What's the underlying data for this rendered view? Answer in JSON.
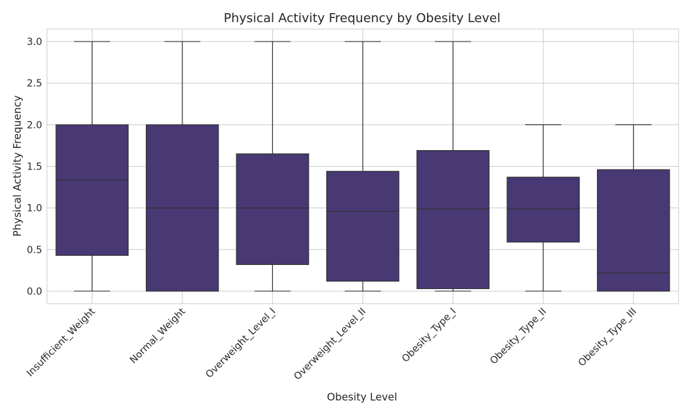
{
  "chart_data": {
    "type": "box",
    "title": "Physical Activity Frequency by Obesity Level",
    "xlabel": "Obesity Level",
    "ylabel": "Physical Activity Frequency",
    "ylim": [
      -0.15,
      3.15
    ],
    "yticks": [
      "0.0",
      "0.5",
      "1.0",
      "1.5",
      "2.0",
      "2.5",
      "3.0"
    ],
    "grid": true,
    "box_color": "#483874",
    "line_color": "#333333",
    "categories": [
      "Insufficient_Weight",
      "Normal_Weight",
      "Overweight_Level_I",
      "Overweight_Level_II",
      "Obesity_Type_I",
      "Obesity_Type_II",
      "Obesity_Type_III"
    ],
    "boxes": [
      {
        "min": 0.0,
        "q1": 0.43,
        "median": 1.34,
        "q3": 2.0,
        "max": 3.0
      },
      {
        "min": 0.0,
        "q1": 0.0,
        "median": 1.0,
        "q3": 2.0,
        "max": 3.0
      },
      {
        "min": 0.0,
        "q1": 0.32,
        "median": 1.0,
        "q3": 1.65,
        "max": 3.0
      },
      {
        "min": 0.0,
        "q1": 0.12,
        "median": 0.96,
        "q3": 1.44,
        "max": 3.0
      },
      {
        "min": 0.0,
        "q1": 0.03,
        "median": 0.99,
        "q3": 1.69,
        "max": 3.0
      },
      {
        "min": 0.0,
        "q1": 0.59,
        "median": 0.99,
        "q3": 1.37,
        "max": 2.0
      },
      {
        "min": 0.0,
        "q1": 0.0,
        "median": 0.22,
        "q3": 1.46,
        "max": 2.0
      }
    ]
  }
}
